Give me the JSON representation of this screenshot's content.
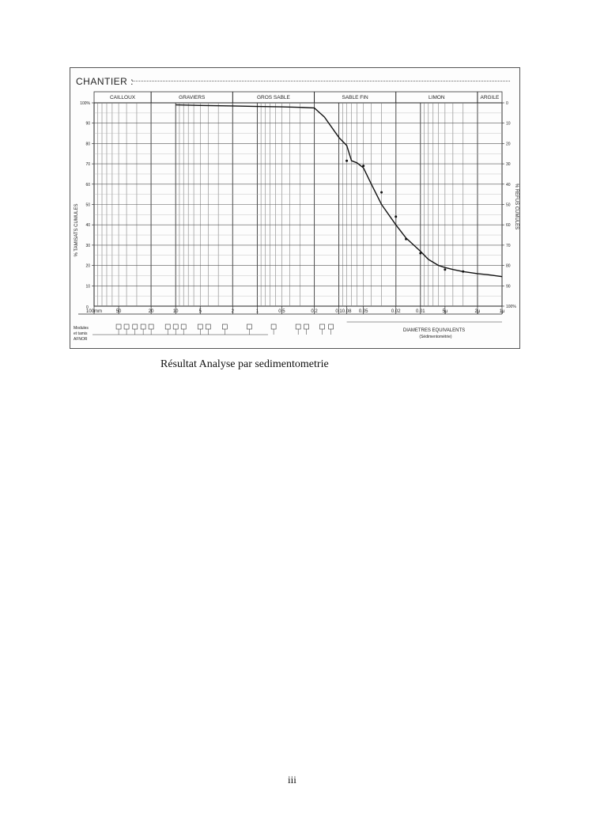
{
  "figure": {
    "header_label": "CHANTIER :",
    "left_axis_label": "% TAMISATS CUMULES",
    "right_axis_label": "% REFUS CUMULES",
    "left_bottom_label": "0",
    "equivalent_label": "DIAMETRES EQUIVALENTS",
    "equivalent_sub": "(Sédimentométrie)",
    "sieve_row_labels": [
      "Modules",
      "et tamis",
      "AFNOR"
    ]
  },
  "chart_data": {
    "type": "line",
    "title": "",
    "xscale": "log",
    "x_direction": "decreasing",
    "xlim_mm": [
      100,
      0.001
    ],
    "ylim": [
      0,
      100
    ],
    "grid": true,
    "bands": [
      {
        "label": "CAILLOUX",
        "from_mm": 100,
        "to_mm": 20
      },
      {
        "label": "GRAVIERS",
        "from_mm": 20,
        "to_mm": 2
      },
      {
        "label": "GROS SABLE",
        "from_mm": 2,
        "to_mm": 0.2
      },
      {
        "label": "SABLE FIN",
        "from_mm": 0.2,
        "to_mm": 0.02
      },
      {
        "label": "LIMON",
        "from_mm": 0.02,
        "to_mm": 0.002
      },
      {
        "label": "ARGILE",
        "from_mm": 0.002,
        "to_mm": 0.001
      }
    ],
    "x_ticks": [
      {
        "mm": 100,
        "label": "100mm"
      },
      {
        "mm": 50,
        "label": "50"
      },
      {
        "mm": 20,
        "label": "20"
      },
      {
        "mm": 10,
        "label": "10"
      },
      {
        "mm": 5,
        "label": "5"
      },
      {
        "mm": 2,
        "label": "2"
      },
      {
        "mm": 1,
        "label": "1"
      },
      {
        "mm": 0.5,
        "label": "0.5"
      },
      {
        "mm": 0.2,
        "label": "0.2"
      },
      {
        "mm": 0.1,
        "label": "0.1"
      },
      {
        "mm": 0.08,
        "label": "0.08"
      },
      {
        "mm": 0.05,
        "label": "0.05"
      },
      {
        "mm": 0.02,
        "label": "0.02"
      },
      {
        "mm": 0.01,
        "label": "0.01"
      },
      {
        "mm": 0.005,
        "label": "5μ"
      },
      {
        "mm": 0.002,
        "label": "2μ"
      },
      {
        "mm": 0.001,
        "label": "1μ"
      }
    ],
    "y_ticks_left": [
      {
        "v": 100,
        "label": "100%"
      },
      {
        "v": 90,
        "label": "90"
      },
      {
        "v": 80,
        "label": "80"
      },
      {
        "v": 70,
        "label": "70"
      },
      {
        "v": 60,
        "label": "60"
      },
      {
        "v": 50,
        "label": "50"
      },
      {
        "v": 40,
        "label": "40"
      },
      {
        "v": 30,
        "label": "30"
      },
      {
        "v": 20,
        "label": "20"
      },
      {
        "v": 10,
        "label": "10"
      }
    ],
    "y_ticks_right": [
      {
        "v": 100,
        "label": "0"
      },
      {
        "v": 90,
        "label": "10"
      },
      {
        "v": 80,
        "label": "20"
      },
      {
        "v": 70,
        "label": "30"
      },
      {
        "v": 60,
        "label": "40"
      },
      {
        "v": 50,
        "label": "50"
      },
      {
        "v": 40,
        "label": "60"
      },
      {
        "v": 30,
        "label": "70"
      },
      {
        "v": 20,
        "label": "80"
      },
      {
        "v": 10,
        "label": "90"
      },
      {
        "v": 0,
        "label": "100%"
      }
    ],
    "series": [
      {
        "x": [
          10,
          5,
          2,
          1,
          0.5,
          0.3,
          0.2,
          0.15,
          0.1,
          0.08,
          0.07,
          0.06,
          0.05,
          0.04,
          0.03,
          0.02,
          0.015,
          0.01,
          0.008,
          0.006,
          0.005,
          0.004,
          0.003,
          0.002,
          0.0015,
          0.001
        ],
        "y": [
          99,
          98.7,
          98.5,
          98.2,
          98,
          97.8,
          97.5,
          93,
          83,
          79,
          71.5,
          70.5,
          68,
          60,
          50,
          40,
          33.5,
          27,
          23,
          20,
          19,
          18,
          17,
          16,
          15.5,
          14.5
        ]
      }
    ],
    "markers": [
      {
        "x": 0.08,
        "y": 71.5
      },
      {
        "x": 0.05,
        "y": 69
      },
      {
        "x": 0.03,
        "y": 56
      },
      {
        "x": 0.02,
        "y": 44
      },
      {
        "x": 0.015,
        "y": 33
      },
      {
        "x": 0.01,
        "y": 26
      },
      {
        "x": 0.005,
        "y": 18
      },
      {
        "x": 0.003,
        "y": 17
      }
    ]
  },
  "caption": "Résultat Analyse par sedimentometrie",
  "page_number": "iii"
}
